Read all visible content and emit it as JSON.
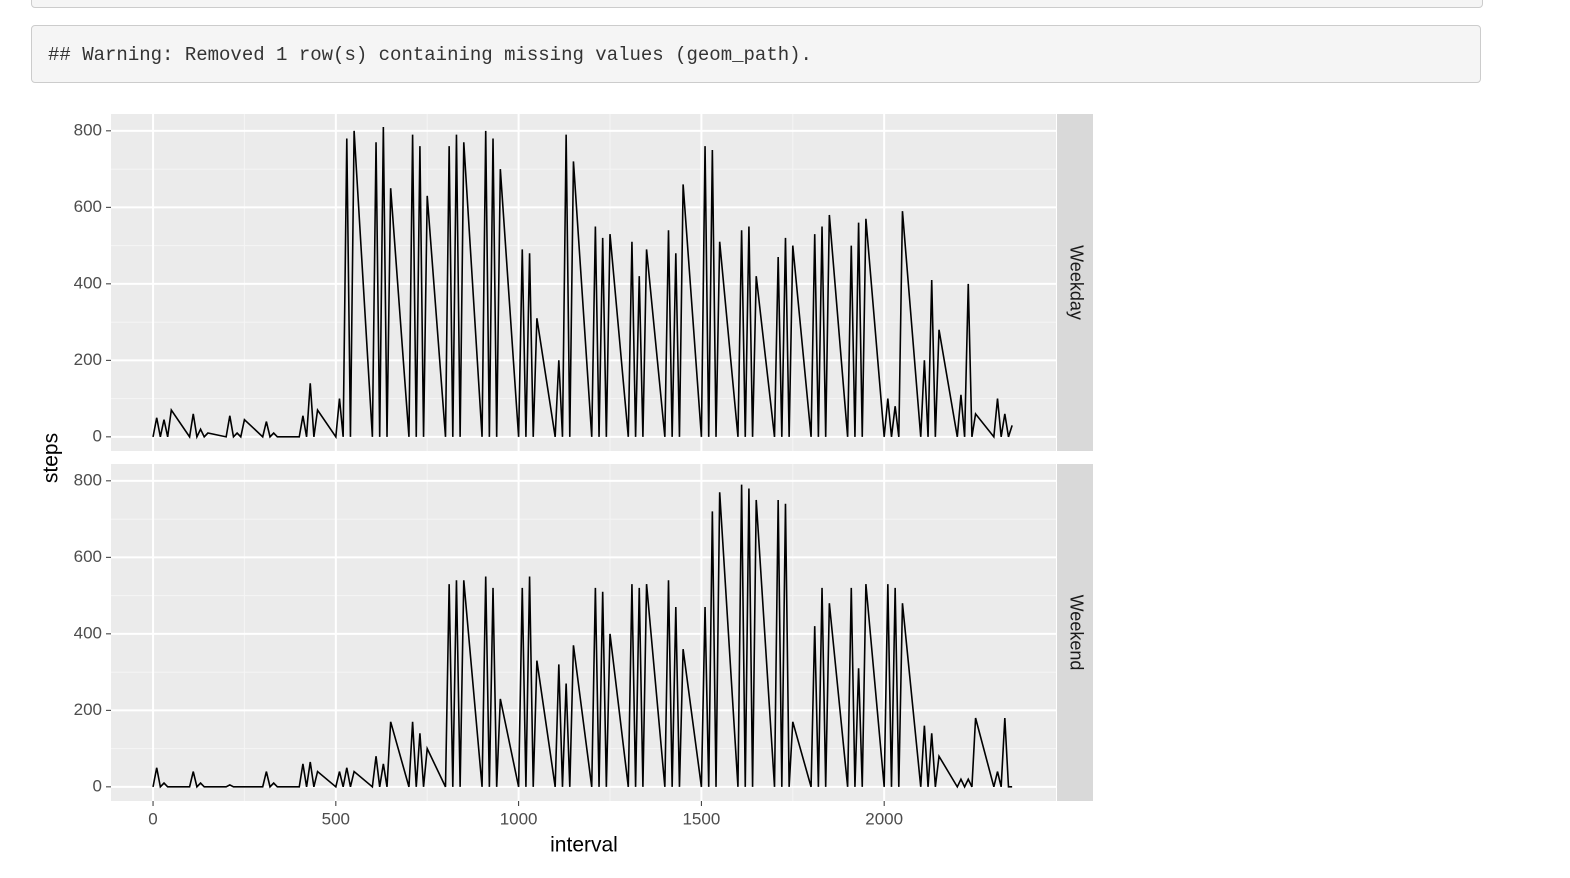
{
  "console": {
    "warning": "## Warning: Removed 1 row(s) containing missing values (geom_path)."
  },
  "chart_data": {
    "type": "line",
    "xlabel": "interval",
    "ylabel": "steps",
    "x": [
      0,
      10,
      20,
      30,
      40,
      50,
      100,
      110,
      120,
      130,
      140,
      150,
      200,
      210,
      220,
      230,
      240,
      250,
      300,
      310,
      320,
      330,
      340,
      350,
      400,
      410,
      420,
      430,
      440,
      450,
      500,
      510,
      520,
      530,
      540,
      550,
      600,
      610,
      620,
      630,
      640,
      650,
      700,
      710,
      720,
      730,
      740,
      750,
      800,
      810,
      820,
      830,
      840,
      850,
      900,
      910,
      920,
      930,
      940,
      950,
      1000,
      1010,
      1020,
      1030,
      1040,
      1050,
      1100,
      1110,
      1120,
      1130,
      1140,
      1150,
      1200,
      1210,
      1220,
      1230,
      1240,
      1250,
      1300,
      1310,
      1320,
      1330,
      1340,
      1350,
      1400,
      1410,
      1420,
      1430,
      1440,
      1450,
      1500,
      1510,
      1520,
      1530,
      1540,
      1550,
      1600,
      1610,
      1620,
      1630,
      1640,
      1650,
      1700,
      1710,
      1720,
      1730,
      1740,
      1750,
      1800,
      1810,
      1820,
      1830,
      1840,
      1850,
      1900,
      1910,
      1920,
      1930,
      1940,
      1950,
      2000,
      2010,
      2020,
      2030,
      2040,
      2050,
      2100,
      2110,
      2120,
      2130,
      2140,
      2150,
      2200,
      2210,
      2220,
      2230,
      2240,
      2250,
      2300,
      2310,
      2320,
      2330,
      2340,
      2350
    ],
    "series": [
      {
        "name": "Weekday",
        "color": "#000000",
        "values": [
          0,
          50,
          0,
          45,
          0,
          70,
          0,
          60,
          0,
          20,
          0,
          10,
          0,
          55,
          0,
          10,
          0,
          45,
          0,
          40,
          0,
          10,
          0,
          0,
          0,
          55,
          0,
          140,
          0,
          70,
          0,
          100,
          0,
          780,
          0,
          800,
          0,
          770,
          0,
          810,
          0,
          650,
          0,
          790,
          0,
          760,
          0,
          630,
          0,
          760,
          0,
          790,
          0,
          770,
          0,
          800,
          0,
          780,
          0,
          700,
          0,
          490,
          0,
          480,
          0,
          310,
          0,
          200,
          0,
          790,
          0,
          720,
          0,
          550,
          0,
          520,
          0,
          530,
          0,
          510,
          0,
          420,
          0,
          490,
          0,
          540,
          0,
          480,
          0,
          660,
          0,
          760,
          0,
          750,
          0,
          510,
          0,
          540,
          0,
          550,
          0,
          420,
          0,
          470,
          0,
          520,
          0,
          500,
          0,
          530,
          0,
          550,
          0,
          580,
          0,
          500,
          0,
          560,
          0,
          570,
          0,
          100,
          0,
          80,
          0,
          590,
          0,
          200,
          0,
          410,
          0,
          280,
          0,
          110,
          0,
          400,
          0,
          60,
          0,
          100,
          0,
          60,
          0,
          30
        ]
      },
      {
        "name": "Weekend",
        "color": "#000000",
        "values": [
          0,
          50,
          0,
          10,
          0,
          0,
          0,
          40,
          0,
          10,
          0,
          0,
          0,
          5,
          0,
          0,
          0,
          0,
          0,
          40,
          0,
          10,
          0,
          0,
          0,
          60,
          0,
          65,
          0,
          40,
          0,
          40,
          0,
          50,
          0,
          40,
          0,
          80,
          0,
          60,
          0,
          170,
          0,
          170,
          0,
          140,
          0,
          100,
          0,
          530,
          0,
          540,
          0,
          540,
          0,
          550,
          0,
          520,
          0,
          230,
          0,
          520,
          0,
          550,
          0,
          330,
          0,
          320,
          0,
          270,
          0,
          370,
          0,
          520,
          0,
          510,
          0,
          400,
          0,
          530,
          0,
          520,
          0,
          530,
          0,
          540,
          0,
          470,
          0,
          360,
          0,
          470,
          0,
          720,
          0,
          770,
          0,
          790,
          0,
          780,
          0,
          750,
          0,
          750,
          0,
          740,
          0,
          170,
          0,
          420,
          0,
          520,
          0,
          480,
          0,
          520,
          0,
          310,
          0,
          530,
          0,
          530,
          0,
          520,
          0,
          480,
          0,
          160,
          0,
          140,
          0,
          80,
          0,
          20,
          0,
          20,
          0,
          180,
          0,
          40,
          0,
          180,
          0,
          0
        ]
      }
    ],
    "xlim": [
      -115,
      2470
    ],
    "ylim": [
      -37,
      844
    ],
    "xticks": [
      0,
      500,
      1000,
      1500,
      2000
    ],
    "yticks": [
      0,
      200,
      400,
      600,
      800
    ],
    "grid": true
  }
}
